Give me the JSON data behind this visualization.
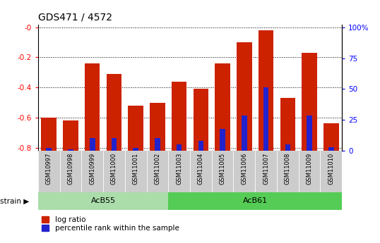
{
  "title": "GDS471 / 4572",
  "samples": [
    "GSM10997",
    "GSM10998",
    "GSM10999",
    "GSM11000",
    "GSM11001",
    "GSM11002",
    "GSM11003",
    "GSM11004",
    "GSM11005",
    "GSM11006",
    "GSM11007",
    "GSM11008",
    "GSM11009",
    "GSM11010"
  ],
  "log_ratio": [
    -0.6,
    -0.62,
    -0.24,
    -0.31,
    -0.52,
    -0.5,
    -0.36,
    -0.41,
    -0.24,
    -0.1,
    -0.02,
    -0.47,
    -0.17,
    -0.64
  ],
  "percentile_rank": [
    2,
    1,
    10,
    10,
    2,
    10,
    5,
    8,
    17,
    28,
    50,
    5,
    28,
    3
  ],
  "ylim_left": [
    -0.82,
    0.02
  ],
  "ylim_right": [
    0,
    102.44
  ],
  "yticks_left": [
    0.0,
    -0.2,
    -0.4,
    -0.6,
    -0.8
  ],
  "yticks_right": [
    0,
    25,
    50,
    75,
    100
  ],
  "bar_color_red": "#CC2200",
  "bar_color_blue": "#2222CC",
  "bg_color_plot": "#FFFFFF",
  "bg_color_label": "#CCCCCC",
  "bg_color_strain_AcB55": "#AADDAA",
  "bg_color_strain_AcB61": "#55CC55",
  "strain_AcB55_range": [
    0,
    5
  ],
  "strain_AcB61_range": [
    6,
    13
  ],
  "legend_red": "log ratio",
  "legend_blue": "percentile rank within the sample",
  "title_fontsize": 10,
  "tick_fontsize": 7.5,
  "bar_bottom": -0.82,
  "bar_width": 0.7,
  "blue_bar_width": 0.25
}
